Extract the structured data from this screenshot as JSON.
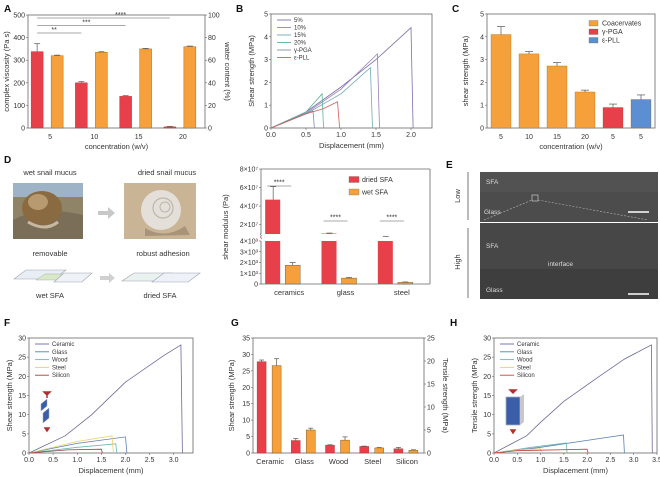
{
  "panels": {
    "A": "A",
    "B": "B",
    "C": "C",
    "D": "D",
    "E": "E",
    "F": "F",
    "G": "G",
    "H": "H"
  },
  "colors": {
    "red": "#e8404a",
    "orange": "#f5a03a",
    "blue": "#5b8fd1",
    "red_axis": "#e0606a",
    "orange_axis": "#e8a050"
  },
  "chart_data": [
    {
      "id": "A",
      "type": "bar",
      "categories": [
        "5",
        "10",
        "15",
        "20"
      ],
      "xlabel": "concentration (w/v)",
      "ylabel": "complex viscosity (Pa s)",
      "y2label": "water content (%)",
      "ylim": [
        0,
        500
      ],
      "y2lim": [
        0,
        100
      ],
      "yticks": [
        0,
        100,
        200,
        300,
        400,
        500
      ],
      "y2ticks": [
        0,
        20,
        40,
        60,
        80,
        100
      ],
      "series": [
        {
          "name": "complex viscosity",
          "axis": "left",
          "color": "#e8404a",
          "values": [
            338,
            200,
            140,
            5
          ],
          "errors": [
            35,
            5,
            3,
            2
          ]
        },
        {
          "name": "water content",
          "axis": "right",
          "color": "#f5a03a",
          "values": [
            64,
            67,
            70,
            72
          ],
          "errors": [
            0.5,
            0.5,
            0.5,
            0.5
          ]
        }
      ],
      "significance": [
        {
          "from": "5",
          "to": "10",
          "label": "**"
        },
        {
          "from": "5",
          "to": "15",
          "label": "***"
        },
        {
          "from": "5",
          "to": "20",
          "label": "****"
        }
      ]
    },
    {
      "id": "B",
      "type": "line",
      "xlabel": "Displacement (mm)",
      "ylabel": "Shear strength (MPa)",
      "xlim": [
        0,
        2.3
      ],
      "ylim": [
        0,
        5
      ],
      "xticks": [
        0.0,
        0.5,
        1.0,
        1.5,
        2.0
      ],
      "yticks": [
        0,
        1,
        2,
        3,
        4,
        5
      ],
      "legend": "top-left",
      "series": [
        {
          "name": "5%",
          "color": "#7a6fae",
          "points": [
            [
              0,
              0
            ],
            [
              0.5,
              0.7
            ],
            [
              1.0,
              1.8
            ],
            [
              1.5,
              3.0
            ],
            [
              2.0,
              4.4
            ],
            [
              2.03,
              0
            ]
          ]
        },
        {
          "name": "10%",
          "color": "#9b7fb6",
          "points": [
            [
              0,
              0
            ],
            [
              0.5,
              0.65
            ],
            [
              1.0,
              1.7
            ],
            [
              1.52,
              3.25
            ],
            [
              1.55,
              0
            ]
          ]
        },
        {
          "name": "15%",
          "color": "#6faab3",
          "points": [
            [
              0,
              0
            ],
            [
              0.5,
              0.62
            ],
            [
              1.0,
              1.5
            ],
            [
              1.42,
              2.65
            ],
            [
              1.45,
              0
            ]
          ]
        },
        {
          "name": "20%",
          "color": "#5fb39a",
          "points": [
            [
              0,
              0
            ],
            [
              0.5,
              0.7
            ],
            [
              0.73,
              1.5
            ],
            [
              0.75,
              0
            ]
          ]
        },
        {
          "name": "γ-PGA",
          "color": "#7f8faa",
          "points": [
            [
              0,
              0
            ],
            [
              0.45,
              0.6
            ],
            [
              0.6,
              0.75
            ],
            [
              0.62,
              0
            ]
          ]
        },
        {
          "name": "ε-PLL",
          "color": "#d0605a",
          "points": [
            [
              0,
              0
            ],
            [
              0.5,
              0.62
            ],
            [
              0.75,
              0.85
            ],
            [
              0.95,
              1.15
            ],
            [
              0.98,
              0
            ]
          ]
        }
      ]
    },
    {
      "id": "C",
      "type": "bar",
      "categories": [
        "5",
        "10",
        "15",
        "20",
        "5",
        "5"
      ],
      "xlabel": "concentration (w/v)",
      "ylabel": "shear strength (MPa)",
      "ylim": [
        0,
        5
      ],
      "yticks": [
        0,
        1,
        2,
        3,
        4,
        5
      ],
      "legend": "top-right",
      "legend_entries": [
        {
          "name": "Coacervates",
          "color": "#f5a03a"
        },
        {
          "name": "γ-PGA",
          "color": "#e8404a"
        },
        {
          "name": "ε-PLL",
          "color": "#5b8fd1"
        }
      ],
      "values": [
        4.1,
        3.25,
        2.72,
        1.58,
        0.9,
        1.25
      ],
      "errors": [
        0.35,
        0.1,
        0.15,
        0.08,
        0.15,
        0.2
      ],
      "bar_series": [
        "Coacervates",
        "Coacervates",
        "Coacervates",
        "Coacervates",
        "γ-PGA",
        "ε-PLL"
      ]
    },
    {
      "id": "D",
      "type": "bar",
      "categories": [
        "ceramics",
        "glass",
        "steel"
      ],
      "ylabel": "shear modulus (Pa)",
      "broken_axis": true,
      "lower_ticks": [
        "0",
        "1×10³",
        "2×10³",
        "3×10³",
        "4×10³"
      ],
      "upper_ticks": [
        "2×10⁷",
        "4×10⁷",
        "6×10⁷",
        "8×10⁷"
      ],
      "legend": "top-right",
      "series": [
        {
          "name": "dried SFA",
          "color": "#e8404a",
          "values": [
            47000000.0,
            10500000.0,
            7000000.0
          ],
          "errors": [
            14000000.0,
            500000.0,
            500000.0
          ]
        },
        {
          "name": "wet SFA",
          "color": "#f5a03a",
          "values": [
            1750,
            550,
            150
          ],
          "errors": [
            250,
            60,
            40
          ]
        }
      ],
      "significance": [
        "****",
        "****",
        "****"
      ]
    },
    {
      "id": "F",
      "type": "line",
      "xlabel": "Displacement (mm)",
      "ylabel": "Shear strength (MPa)",
      "xlim": [
        0,
        3.4
      ],
      "ylim": [
        0,
        30
      ],
      "xticks": [
        0.0,
        0.5,
        1.0,
        1.5,
        2.0,
        2.5,
        3.0
      ],
      "yticks": [
        0,
        5,
        10,
        15,
        20,
        25,
        30
      ],
      "legend": "top-left",
      "series": [
        {
          "name": "Ceramic",
          "color": "#6a6a9a",
          "points": [
            [
              0,
              0
            ],
            [
              0.75,
              4.5
            ],
            [
              1.3,
              10
            ],
            [
              2.0,
              18.5
            ],
            [
              2.8,
              25.5
            ],
            [
              3.15,
              28.2
            ],
            [
              3.18,
              0
            ]
          ]
        },
        {
          "name": "Glass",
          "color": "#5a7fb0",
          "points": [
            [
              0,
              0
            ],
            [
              1.0,
              2.5
            ],
            [
              2.0,
              4.2
            ],
            [
              2.03,
              0
            ]
          ]
        },
        {
          "name": "Wood",
          "color": "#6ab8b0",
          "points": [
            [
              0,
              0
            ],
            [
              1.0,
              1.5
            ],
            [
              1.8,
              2.4
            ],
            [
              1.82,
              0
            ]
          ]
        },
        {
          "name": "Steel",
          "color": "#e8d070",
          "points": [
            [
              0,
              0
            ],
            [
              1.0,
              3.0
            ],
            [
              1.72,
              4.5
            ],
            [
              1.75,
              0
            ]
          ]
        },
        {
          "name": "Silicon",
          "color": "#a04040",
          "points": [
            [
              0,
              0
            ],
            [
              0.8,
              0.8
            ],
            [
              1.5,
              1.0
            ],
            [
              1.52,
              0
            ]
          ]
        }
      ]
    },
    {
      "id": "G",
      "type": "bar",
      "categories": [
        "Ceramic",
        "Glass",
        "Wood",
        "Steel",
        "Silicon"
      ],
      "ylabel": "Shear strength (MPa)",
      "y2label": "Tensile strength (MPa)",
      "ylim": [
        0,
        35
      ],
      "y2lim": [
        0,
        25
      ],
      "yticks": [
        0,
        5,
        10,
        15,
        20,
        25,
        30,
        35
      ],
      "y2ticks": [
        0,
        5,
        10,
        15,
        20,
        25
      ],
      "series": [
        {
          "name": "Shear strength",
          "axis": "left",
          "color": "#e8404a",
          "values": [
            27.8,
            3.8,
            2.4,
            2.0,
            1.3
          ],
          "errors": [
            0.5,
            0.6,
            0.1,
            0.1,
            0.4
          ]
        },
        {
          "name": "Tensile strength",
          "axis": "right",
          "color": "#f5a03a",
          "values": [
            19.0,
            5.0,
            2.8,
            1.1,
            0.6
          ],
          "errors": [
            1.5,
            0.4,
            0.7,
            0.1,
            0.1
          ]
        }
      ]
    },
    {
      "id": "H",
      "type": "line",
      "xlabel": "Displacement (mm)",
      "ylabel": "Tensile strength (MPa)",
      "xlim": [
        0,
        3.5
      ],
      "ylim": [
        0,
        30
      ],
      "xticks": [
        0.0,
        0.5,
        1.0,
        1.5,
        2.0,
        2.5,
        3.0,
        3.5
      ],
      "yticks": [
        0,
        5,
        10,
        15,
        20,
        25,
        30
      ],
      "legend": "top-left",
      "series": [
        {
          "name": "Ceramic",
          "color": "#6a6a9a",
          "points": [
            [
              0,
              0
            ],
            [
              0.7,
              4.5
            ],
            [
              1.0,
              8
            ],
            [
              1.5,
              13.5
            ],
            [
              2.2,
              19.5
            ],
            [
              2.8,
              24.5
            ],
            [
              3.38,
              28.2
            ],
            [
              3.4,
              0
            ]
          ]
        },
        {
          "name": "Glass",
          "color": "#5a7fb0",
          "points": [
            [
              0,
              0
            ],
            [
              1.0,
              1.5
            ],
            [
              2.0,
              3.3
            ],
            [
              2.78,
              4.7
            ],
            [
              2.8,
              0
            ]
          ]
        },
        {
          "name": "Wood",
          "color": "#6ab8b0",
          "points": [
            [
              0,
              0
            ],
            [
              0.8,
              1.5
            ],
            [
              1.55,
              2.6
            ],
            [
              1.57,
              0
            ]
          ]
        },
        {
          "name": "Steel",
          "color": "#e8d070",
          "points": [
            [
              0,
              0
            ],
            [
              0.6,
              0.9
            ],
            [
              1.0,
              1.1
            ],
            [
              1.02,
              0
            ]
          ]
        },
        {
          "name": "Silicon",
          "color": "#d04040",
          "points": [
            [
              0,
              0
            ],
            [
              0.5,
              0.6
            ],
            [
              2.0,
              1.0
            ],
            [
              2.02,
              0
            ]
          ]
        }
      ]
    }
  ],
  "panel_D_text": {
    "wet_mucus": "wet snail mucus",
    "dried_mucus": "dried snail mucus",
    "removable": "removable",
    "robust": "robust adhesion",
    "wet_sfa": "wet SFA",
    "dried_sfa": "dried SFA"
  },
  "panel_E_text": {
    "low": "Low",
    "high": "High",
    "sfa1": "SFA",
    "glass1": "Glass",
    "sfa2": "SFA",
    "interface": "interface",
    "glass2": "Glass"
  }
}
